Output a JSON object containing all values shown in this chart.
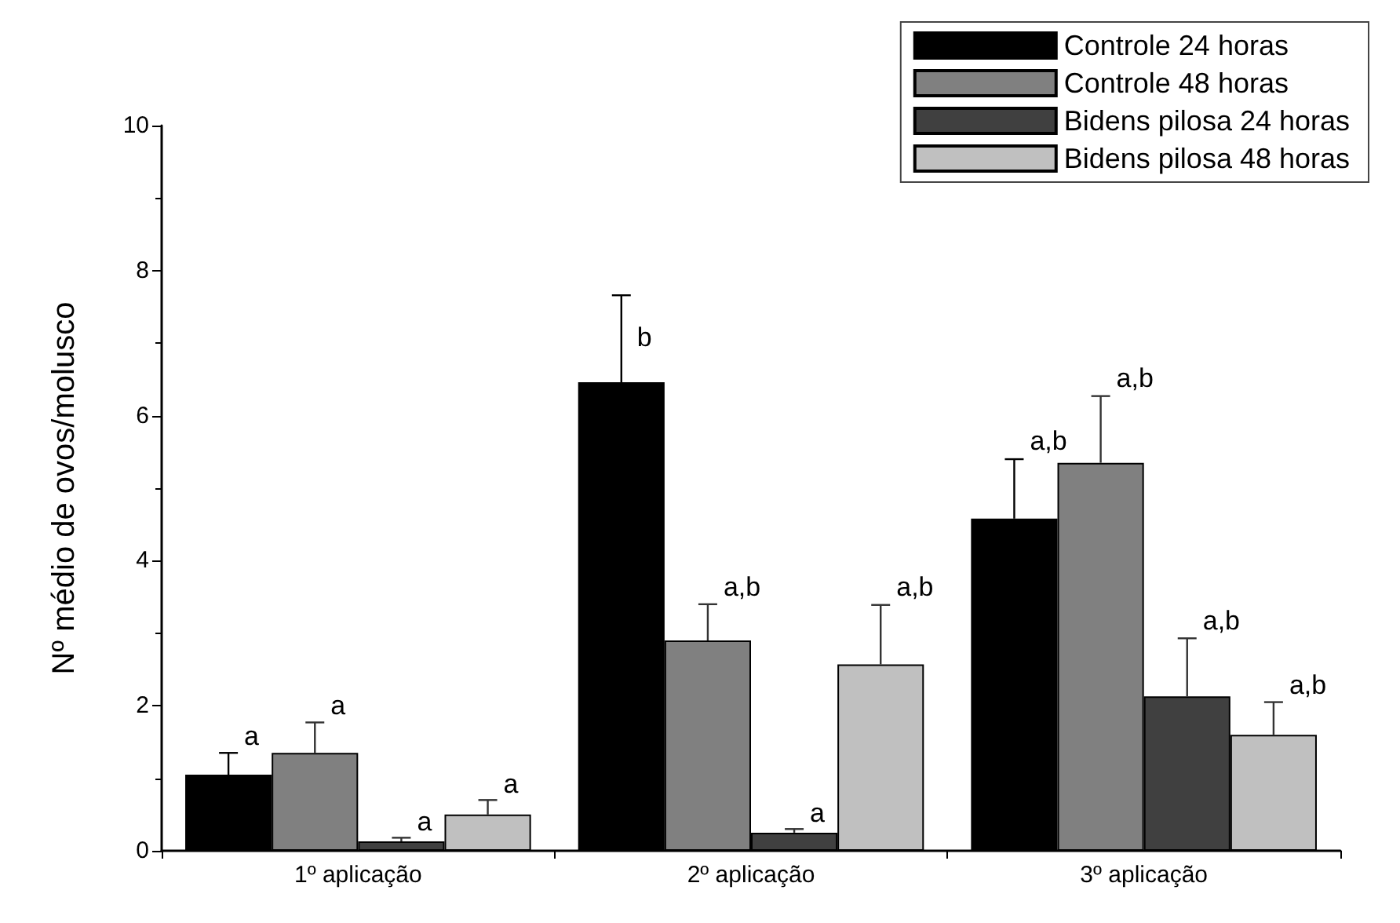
{
  "chart_data": {
    "type": "bar",
    "ylabel": "Nº médio de ovos/molusco",
    "categories": [
      "1º aplicação",
      "2º aplicação",
      "3º aplicação"
    ],
    "ylim": [
      0,
      10
    ],
    "yticks": [
      0,
      2,
      4,
      6,
      8,
      10
    ],
    "grid": false,
    "legend": "top right",
    "series": [
      {
        "name": "Controle 24 horas",
        "color": "#000000",
        "values": [
          1.05,
          6.46,
          4.58
        ],
        "errors": [
          [
            1.05,
            1.35
          ],
          [
            6.46,
            7.66
          ],
          [
            4.58,
            5.4
          ]
        ],
        "value_labels": [
          "a",
          "b",
          "a,b"
        ]
      },
      {
        "name": "Controle 48 horas",
        "color": "#808080",
        "values": [
          1.35,
          2.9,
          5.35
        ],
        "errors": [
          [
            1.35,
            1.77
          ],
          [
            2.9,
            3.4
          ],
          [
            5.35,
            6.27
          ]
        ],
        "value_labels": [
          "a",
          "a,b",
          "a,b"
        ]
      },
      {
        "name": "Bidens pilosa 24 horas",
        "color": "#404040",
        "values": [
          0.13,
          0.25,
          2.13
        ],
        "errors": [
          [
            0.13,
            0.18
          ],
          [
            0.25,
            0.3
          ],
          [
            2.13,
            2.93
          ]
        ],
        "value_labels": [
          "a",
          "a",
          "a,b"
        ]
      },
      {
        "name": "Bidens pilosa 48 horas",
        "color": "#c0c0c0",
        "values": [
          0.5,
          2.57,
          1.6
        ],
        "errors": [
          [
            0.5,
            0.7
          ],
          [
            2.57,
            3.39
          ],
          [
            1.6,
            2.05
          ]
        ],
        "value_labels": [
          "a",
          "a,b",
          "a,b"
        ]
      }
    ]
  }
}
